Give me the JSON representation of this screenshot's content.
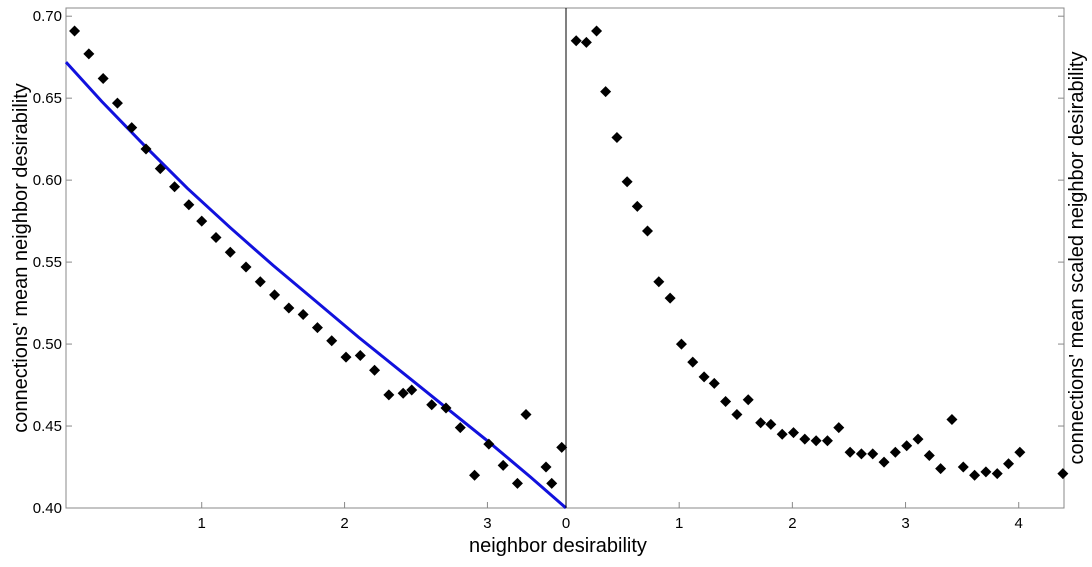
{
  "chart_data": [
    {
      "panel": "left",
      "type": "scatter",
      "ylabel": "connections' mean neighbor desirability",
      "ylim": [
        0.4,
        0.705
      ],
      "xlim": [
        0.05,
        3.55
      ],
      "x_ticks": [
        1,
        2,
        3
      ],
      "x_tick_labels": [
        "1",
        "2",
        "3"
      ],
      "y_ticks": [
        0.4,
        0.45,
        0.5,
        0.55,
        0.6,
        0.65,
        0.7
      ],
      "y_tick_labels": [
        "0.40",
        "0.45",
        "0.50",
        "0.55",
        "0.60",
        "0.65",
        "0.70"
      ],
      "marker": "diamond",
      "marker_color": "#000000",
      "points": {
        "x": [
          0.11,
          0.21,
          0.31,
          0.41,
          0.51,
          0.61,
          0.71,
          0.81,
          0.91,
          1.0,
          1.1,
          1.2,
          1.31,
          1.41,
          1.51,
          1.61,
          1.71,
          1.81,
          1.91,
          2.01,
          2.11,
          2.21,
          2.31,
          2.41,
          2.47,
          2.61,
          2.71,
          2.81,
          2.91,
          3.01,
          3.11,
          3.21,
          3.27,
          3.41,
          3.45,
          3.52
        ],
        "y": [
          0.691,
          0.677,
          0.662,
          0.647,
          0.632,
          0.619,
          0.607,
          0.596,
          0.585,
          0.575,
          0.565,
          0.556,
          0.547,
          0.538,
          0.53,
          0.522,
          0.518,
          0.51,
          0.502,
          0.492,
          0.493,
          0.484,
          0.469,
          0.47,
          0.472,
          0.463,
          0.461,
          0.449,
          0.42,
          0.439,
          0.426,
          0.415,
          0.457,
          0.425,
          0.415,
          0.437
        ]
      },
      "fit_line": {
        "color": "#1111dd",
        "x": [
          0.05,
          0.3,
          0.6,
          0.9,
          1.2,
          1.5,
          1.8,
          2.1,
          2.4,
          2.7,
          3.0,
          3.3,
          3.55
        ],
        "y": [
          0.672,
          0.648,
          0.621,
          0.595,
          0.571,
          0.548,
          0.526,
          0.504,
          0.483,
          0.462,
          0.441,
          0.419,
          0.4
        ]
      }
    },
    {
      "panel": "right",
      "type": "scatter",
      "ylabel": "connections' mean scaled neighbor desirability",
      "ylim": [
        0.4,
        0.705
      ],
      "xlim": [
        0,
        4.4
      ],
      "x_ticks": [
        0,
        1,
        2,
        3,
        4
      ],
      "x_tick_labels": [
        "0",
        "1",
        "2",
        "3",
        "4"
      ],
      "marker": "diamond",
      "marker_color": "#000000",
      "points": {
        "x": [
          0.09,
          0.18,
          0.27,
          0.35,
          0.45,
          0.54,
          0.63,
          0.72,
          0.82,
          0.92,
          1.02,
          1.12,
          1.22,
          1.31,
          1.41,
          1.51,
          1.61,
          1.72,
          1.81,
          1.91,
          2.01,
          2.11,
          2.21,
          2.31,
          2.41,
          2.51,
          2.61,
          2.71,
          2.81,
          2.91,
          3.01,
          3.11,
          3.21,
          3.31,
          3.41,
          3.51,
          3.61,
          3.71,
          3.81,
          3.91,
          4.01,
          4.39
        ],
        "y": [
          0.685,
          0.684,
          0.691,
          0.654,
          0.626,
          0.599,
          0.584,
          0.569,
          0.538,
          0.528,
          0.5,
          0.489,
          0.48,
          0.476,
          0.465,
          0.457,
          0.466,
          0.452,
          0.451,
          0.445,
          0.446,
          0.442,
          0.441,
          0.441,
          0.449,
          0.434,
          0.433,
          0.433,
          0.428,
          0.434,
          0.438,
          0.442,
          0.432,
          0.424,
          0.454,
          0.425,
          0.42,
          0.422,
          0.421,
          0.427,
          0.434,
          0.421
        ]
      }
    }
  ],
  "shared_xlabel": "neighbor desirability"
}
